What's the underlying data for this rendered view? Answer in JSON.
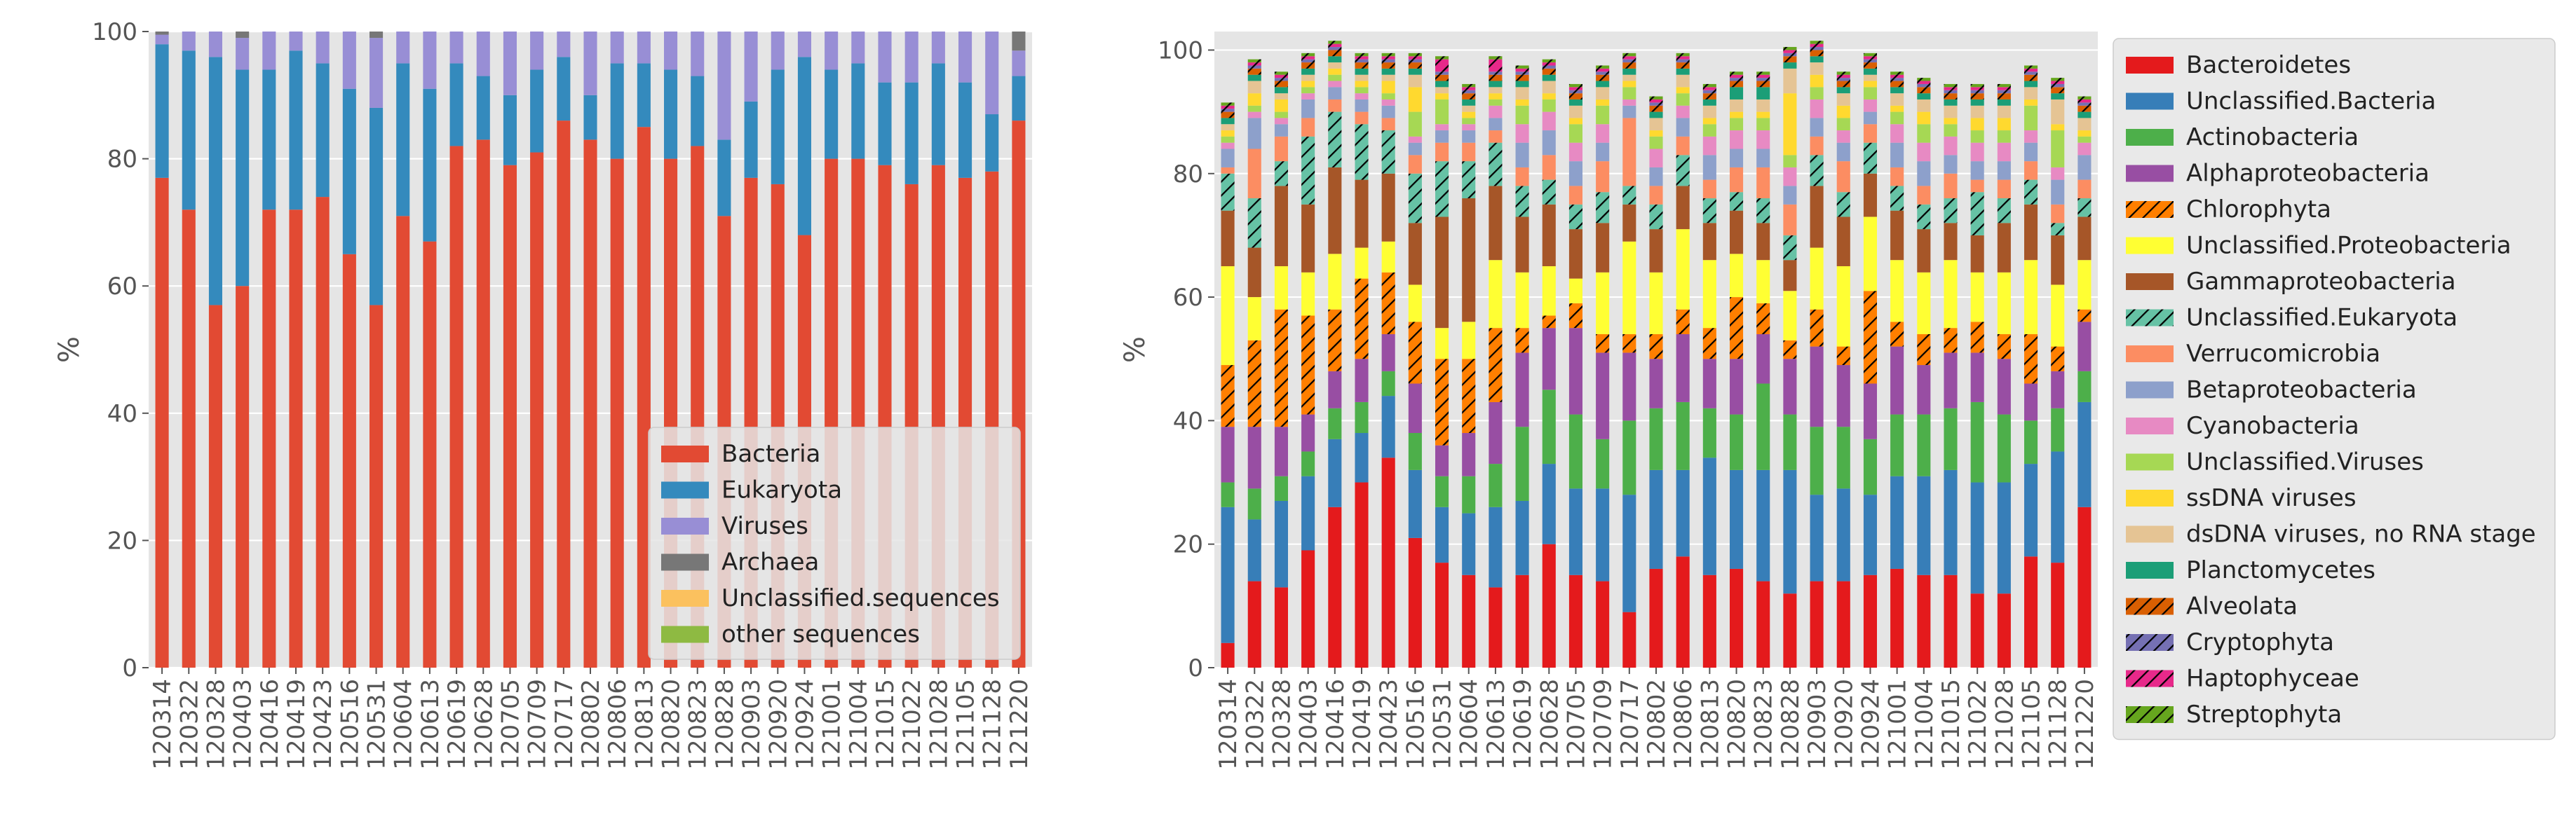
{
  "chart_data": [
    {
      "type": "bar",
      "stacked": true,
      "ylabel": "%",
      "ylim": [
        0,
        100
      ],
      "yticks": [
        0,
        20,
        40,
        60,
        80,
        100
      ],
      "grid": true,
      "legend_position": "bottom-right",
      "categories": [
        "120314",
        "120322",
        "120328",
        "120403",
        "120416",
        "120419",
        "120423",
        "120516",
        "120531",
        "120604",
        "120613",
        "120619",
        "120628",
        "120705",
        "120709",
        "120717",
        "120802",
        "120806",
        "120813",
        "120820",
        "120823",
        "120828",
        "120903",
        "120920",
        "120924",
        "121001",
        "121004",
        "121015",
        "121022",
        "121028",
        "121105",
        "121128",
        "121220"
      ],
      "series": [
        {
          "name": "Bacteria",
          "color": "#E24A33",
          "hatch": false,
          "values": [
            77,
            72,
            57,
            60,
            72,
            72,
            74,
            65,
            57,
            71,
            67,
            82,
            83,
            79,
            81,
            86,
            83,
            80,
            85,
            80,
            82,
            71,
            77,
            76,
            68,
            80,
            80,
            79,
            76,
            79,
            77,
            78,
            86
          ]
        },
        {
          "name": "Eukaryota",
          "color": "#348ABD",
          "hatch": false,
          "values": [
            21,
            25,
            39,
            34,
            22,
            25,
            21,
            26,
            31,
            24,
            24,
            13,
            10,
            11,
            13,
            10,
            7,
            15,
            10,
            14,
            11,
            12,
            12,
            18,
            28,
            14,
            15,
            13,
            16,
            16,
            15,
            9,
            7
          ]
        },
        {
          "name": "Viruses",
          "color": "#988ED5",
          "hatch": false,
          "values": [
            1.5,
            3,
            4,
            5,
            6,
            3,
            5,
            9,
            11,
            5,
            9,
            5,
            7,
            10,
            6,
            4,
            10,
            5,
            5,
            6,
            7,
            17,
            11,
            6,
            4,
            6,
            5,
            8,
            8,
            5,
            8,
            13,
            4
          ]
        },
        {
          "name": "Archaea",
          "color": "#777777",
          "hatch": false,
          "values": [
            0.5,
            0,
            0,
            1,
            0,
            0,
            0,
            0,
            1,
            0,
            0,
            0,
            0,
            0,
            0,
            0,
            0,
            0,
            0,
            0,
            0,
            0,
            0,
            0,
            0,
            0,
            0,
            0,
            0,
            0,
            0,
            0,
            3
          ]
        },
        {
          "name": "Unclassified.sequences",
          "color": "#FBC15E",
          "hatch": false,
          "values": [
            0,
            0,
            0,
            0,
            0,
            0,
            0,
            0,
            0,
            0,
            0,
            0,
            0,
            0,
            0,
            0,
            0,
            0,
            0,
            0,
            0,
            0,
            0,
            0,
            0,
            0,
            0,
            0,
            0,
            0,
            0,
            0,
            0
          ]
        },
        {
          "name": "other sequences",
          "color": "#8EBA42",
          "hatch": false,
          "values": [
            0,
            0,
            0,
            0,
            0,
            0,
            0,
            0,
            0,
            0,
            0,
            0,
            0,
            0,
            0,
            0,
            0,
            0,
            0,
            0,
            0,
            0,
            0,
            0,
            0,
            0,
            0,
            0,
            0,
            0,
            0,
            0,
            0
          ]
        }
      ]
    },
    {
      "type": "bar",
      "stacked": true,
      "ylabel": "%",
      "ylim": [
        0,
        103
      ],
      "yticks": [
        0,
        20,
        40,
        60,
        80,
        100
      ],
      "grid": true,
      "legend_position": "outside-right",
      "categories": [
        "120314",
        "120322",
        "120328",
        "120403",
        "120416",
        "120419",
        "120423",
        "120516",
        "120531",
        "120604",
        "120613",
        "120619",
        "120628",
        "120705",
        "120709",
        "120717",
        "120802",
        "120806",
        "120813",
        "120820",
        "120823",
        "120828",
        "120903",
        "120920",
        "120924",
        "121001",
        "121004",
        "121015",
        "121022",
        "121028",
        "121105",
        "121128",
        "121220"
      ],
      "series": [
        {
          "name": "Bacteroidetes",
          "color": "#E41A1C",
          "hatch": false,
          "values": [
            4,
            14,
            13,
            19,
            26,
            30,
            34,
            21,
            17,
            15,
            13,
            15,
            20,
            15,
            14,
            9,
            16,
            18,
            15,
            16,
            14,
            12,
            14,
            14,
            15,
            16,
            15,
            15,
            12,
            12,
            18,
            17,
            26
          ]
        },
        {
          "name": "Unclassified.Bacteria",
          "color": "#377EB8",
          "hatch": false,
          "values": [
            22,
            10,
            14,
            12,
            11,
            8,
            10,
            11,
            9,
            10,
            13,
            12,
            13,
            14,
            15,
            19,
            16,
            14,
            19,
            16,
            18,
            20,
            14,
            15,
            13,
            15,
            16,
            17,
            18,
            18,
            15,
            18,
            17
          ]
        },
        {
          "name": "Actinobacteria",
          "color": "#4DAF4A",
          "hatch": false,
          "values": [
            4,
            5,
            4,
            4,
            5,
            5,
            4,
            6,
            5,
            6,
            7,
            12,
            12,
            12,
            8,
            12,
            10,
            11,
            8,
            9,
            14,
            9,
            11,
            10,
            9,
            10,
            10,
            10,
            13,
            11,
            7,
            7,
            5
          ]
        },
        {
          "name": "Alphaproteobacteria",
          "color": "#984EA3",
          "hatch": false,
          "values": [
            9,
            10,
            8,
            6,
            6,
            7,
            6,
            8,
            5,
            7,
            10,
            12,
            10,
            14,
            14,
            11,
            8,
            11,
            8,
            9,
            8,
            9,
            13,
            10,
            9,
            11,
            8,
            9,
            8,
            9,
            6,
            6,
            8
          ]
        },
        {
          "name": "Chlorophyta",
          "color": "#FF7F00",
          "hatch": true,
          "values": [
            10,
            14,
            19,
            16,
            10,
            13,
            10,
            10,
            14,
            12,
            12,
            4,
            2,
            4,
            3,
            3,
            4,
            4,
            5,
            10,
            5,
            3,
            6,
            3,
            15,
            4,
            5,
            4,
            5,
            4,
            8,
            4,
            2
          ]
        },
        {
          "name": "Unclassified.Proteobacteria",
          "color": "#FFFF33",
          "hatch": false,
          "values": [
            16,
            7,
            7,
            7,
            9,
            5,
            5,
            6,
            5,
            6,
            11,
            9,
            8,
            4,
            10,
            15,
            10,
            13,
            11,
            7,
            7,
            8,
            10,
            13,
            12,
            10,
            10,
            11,
            8,
            10,
            12,
            10,
            8
          ]
        },
        {
          "name": "Gammaproteobacteria",
          "color": "#A65628",
          "hatch": false,
          "values": [
            9,
            8,
            13,
            11,
            14,
            11,
            11,
            10,
            18,
            20,
            12,
            9,
            10,
            8,
            8,
            6,
            7,
            7,
            6,
            7,
            6,
            5,
            10,
            8,
            7,
            8,
            7,
            6,
            6,
            8,
            9,
            8,
            7
          ]
        },
        {
          "name": "Unclassified.Eukaryota",
          "color": "#66C2A5",
          "hatch": true,
          "values": [
            6,
            8,
            4,
            11,
            9,
            9,
            7,
            8,
            9,
            6,
            7,
            5,
            4,
            4,
            5,
            3,
            4,
            5,
            4,
            3,
            4,
            4,
            5,
            4,
            5,
            4,
            4,
            4,
            7,
            4,
            4,
            2,
            3
          ]
        },
        {
          "name": "Verrucomicrobia",
          "color": "#FC8D62",
          "hatch": false,
          "values": [
            1,
            8,
            4,
            3,
            2,
            2,
            2,
            3,
            3,
            3,
            2,
            3,
            4,
            3,
            5,
            11,
            3,
            3,
            3,
            4,
            5,
            5,
            3,
            5,
            3,
            3,
            3,
            4,
            2,
            3,
            3,
            3,
            3
          ]
        },
        {
          "name": "Betaproteobacteria",
          "color": "#8DA0CB",
          "hatch": false,
          "values": [
            3,
            5,
            2,
            3,
            2,
            2,
            2,
            2,
            2,
            2,
            2,
            4,
            4,
            4,
            3,
            2,
            3,
            3,
            4,
            3,
            3,
            3,
            3,
            3,
            2,
            4,
            4,
            3,
            3,
            3,
            3,
            4,
            4
          ]
        },
        {
          "name": "Cyanobacteria",
          "color": "#E78AC3",
          "hatch": false,
          "values": [
            1,
            1,
            1,
            1,
            1,
            1,
            1,
            1,
            1,
            1,
            2,
            3,
            3,
            3,
            3,
            1,
            3,
            2,
            3,
            3,
            3,
            3,
            3,
            2,
            2,
            3,
            3,
            3,
            3,
            3,
            2,
            2,
            2
          ]
        },
        {
          "name": "Unclassified.Viruses",
          "color": "#A6D854",
          "hatch": false,
          "values": [
            1,
            1,
            1,
            1,
            1,
            1,
            1,
            4,
            4,
            1,
            1,
            3,
            2,
            3,
            3,
            2,
            2,
            2,
            2,
            2,
            2,
            2,
            2,
            2,
            2,
            2,
            3,
            2,
            2,
            2,
            4,
            6,
            1
          ]
        },
        {
          "name": "ssDNA viruses",
          "color": "#FFD92F",
          "hatch": false,
          "values": [
            1,
            2,
            2,
            1,
            1,
            1,
            2,
            4,
            1,
            1,
            1,
            1,
            1,
            1,
            1,
            1,
            1,
            1,
            1,
            1,
            1,
            10,
            2,
            2,
            1,
            1,
            2,
            1,
            2,
            2,
            1,
            1,
            1
          ]
        },
        {
          "name": "dsDNA viruses, no RNA stage",
          "color": "#E5C494",
          "hatch": false,
          "values": [
            1,
            2,
            1,
            1,
            1,
            1,
            1,
            2,
            1,
            1,
            1,
            2,
            2,
            2,
            2,
            1,
            2,
            2,
            2,
            2,
            2,
            4,
            2,
            2,
            1,
            2,
            2,
            2,
            2,
            2,
            2,
            4,
            2
          ]
        },
        {
          "name": "Planctomycetes",
          "color": "#1B9E77",
          "hatch": false,
          "values": [
            1,
            1,
            1,
            1,
            1,
            1,
            1,
            1,
            1,
            1,
            1,
            1,
            1,
            1,
            1,
            1,
            1,
            1,
            1,
            2,
            2,
            1,
            1,
            1,
            1,
            1,
            1,
            1,
            1,
            1,
            1,
            1,
            1
          ]
        },
        {
          "name": "Alveolata",
          "color": "#D95F02",
          "hatch": true,
          "values": [
            1,
            1,
            1,
            1,
            1,
            1,
            1,
            1,
            1,
            1,
            1,
            1,
            1,
            1,
            1,
            1,
            1,
            1,
            1,
            1,
            1,
            1,
            1,
            1,
            1,
            1,
            1,
            1,
            1,
            1,
            1,
            1,
            1
          ]
        },
        {
          "name": "Cryptophyta",
          "color": "#7570B3",
          "hatch": true,
          "values": [
            0.5,
            0.5,
            0.5,
            0.5,
            0.5,
            0.5,
            0.5,
            0.5,
            0.5,
            0.5,
            0.5,
            0.5,
            0.5,
            0.5,
            0.5,
            0.5,
            0.5,
            0.5,
            0.5,
            0.5,
            0.5,
            0.5,
            0.5,
            0.5,
            0.5,
            0.5,
            0.5,
            0.5,
            0.5,
            0.5,
            0.5,
            0.5,
            0.5
          ]
        },
        {
          "name": "Haptophyceae",
          "color": "#E7298A",
          "hatch": true,
          "values": [
            0.5,
            0.5,
            0.5,
            0.5,
            0.5,
            0.5,
            0.5,
            0.5,
            2,
            0.5,
            2,
            0.5,
            0.5,
            0.5,
            0.5,
            0.5,
            0.5,
            0.5,
            0.5,
            0.5,
            0.5,
            0.5,
            0.5,
            0.5,
            0.5,
            0.5,
            0.5,
            0.5,
            0.5,
            0.5,
            0.5,
            0.5,
            0.5
          ]
        },
        {
          "name": "Streptophyta",
          "color": "#66A61E",
          "hatch": true,
          "values": [
            0.5,
            0.5,
            0.5,
            0.5,
            0.5,
            0.5,
            0.5,
            0.5,
            0.5,
            0.5,
            0.5,
            0.5,
            0.5,
            0.5,
            0.5,
            0.5,
            0.5,
            0.5,
            0.5,
            0.5,
            0.5,
            0.5,
            0.5,
            0.5,
            0.5,
            0.5,
            0.5,
            0.5,
            0.5,
            0.5,
            0.5,
            0.5,
            0.5
          ]
        }
      ]
    }
  ]
}
